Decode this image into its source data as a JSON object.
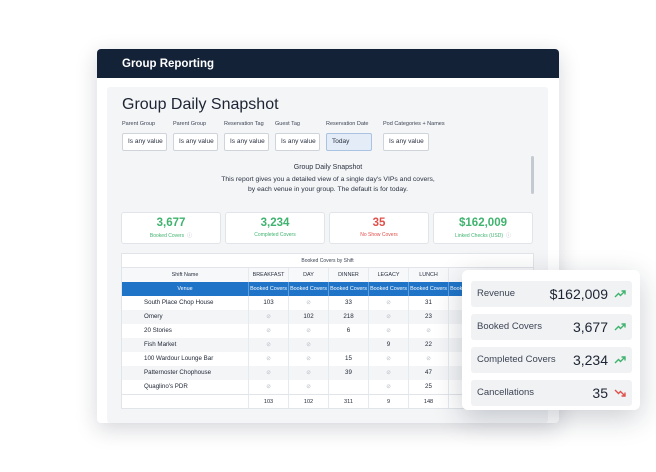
{
  "window": {
    "title": "Group Reporting"
  },
  "snapshot": {
    "title": "Group Daily Snapshot",
    "filters": [
      {
        "label": "Parent Group",
        "value": "Is any value"
      },
      {
        "label": "Parent Group",
        "value": "Is any value"
      },
      {
        "label": "Reservation Tag",
        "value": "Is any value"
      },
      {
        "label": "Guest Tag",
        "value": "Is any value"
      },
      {
        "label": "Reservation Date",
        "value": "Today"
      },
      {
        "label": "Pod Categories + Names",
        "value": "Is any value"
      }
    ],
    "description": {
      "heading": "Group Daily Snapshot",
      "line1": "This report gives you a detailed view of a single day's VIPs and covers,",
      "line2": "by each venue in your group. The default is for today."
    }
  },
  "kpis": [
    {
      "value": "3,677",
      "label": "Booked Covers",
      "color": "#3fb36e"
    },
    {
      "value": "3,234",
      "label": "Completed Covers",
      "color": "#3fb36e"
    },
    {
      "value": "35",
      "label": "No Show Covers",
      "color": "#e0504b"
    },
    {
      "value": "$162,009",
      "label": "Linked Checks (USD)",
      "color": "#3fb36e"
    }
  ],
  "table": {
    "caption": "Booked Covers by Shift",
    "shift_header": "Shift Name",
    "shifts": [
      "BREAKFAST",
      "DAY",
      "DINNER",
      "LEGACY",
      "LUNCH"
    ],
    "venue_header": "Venue",
    "col_header": "Booked Covers",
    "rows": [
      {
        "venue": "South Place Chop House",
        "cells": [
          "103",
          "-",
          "33",
          "-",
          "31",
          "-"
        ]
      },
      {
        "venue": "Omery",
        "cells": [
          "-",
          "102",
          "218",
          "-",
          "23",
          "-"
        ]
      },
      {
        "venue": "20 Stories",
        "cells": [
          "-",
          "-",
          "6",
          "-",
          "-",
          "-"
        ]
      },
      {
        "venue": "Fish Market",
        "cells": [
          "-",
          "-",
          "",
          "9",
          "22",
          "-"
        ]
      },
      {
        "venue": "100 Wardour Lounge Bar",
        "cells": [
          "-",
          "-",
          "15",
          "-",
          "-",
          "-"
        ]
      },
      {
        "venue": "Patternoster Chophouse",
        "cells": [
          "-",
          "-",
          "39",
          "-",
          "47",
          "-"
        ]
      },
      {
        "venue": "Quaglino's PDR",
        "cells": [
          "-",
          "-",
          "",
          "-",
          "25",
          "-"
        ]
      }
    ],
    "totals": [
      "103",
      "102",
      "311",
      "9",
      "148",
      ""
    ]
  },
  "summary": [
    {
      "label": "Revenue",
      "value": "$162,009",
      "trend": "up"
    },
    {
      "label": "Booked Covers",
      "value": "3,677",
      "trend": "up"
    },
    {
      "label": "Completed Covers",
      "value": "3,234",
      "trend": "up"
    },
    {
      "label": "Cancellations",
      "value": "35",
      "trend": "down"
    }
  ],
  "colors": {
    "header": "#142238",
    "accent": "#1f74c8",
    "positive": "#3fb36e",
    "negative": "#e0504b"
  }
}
